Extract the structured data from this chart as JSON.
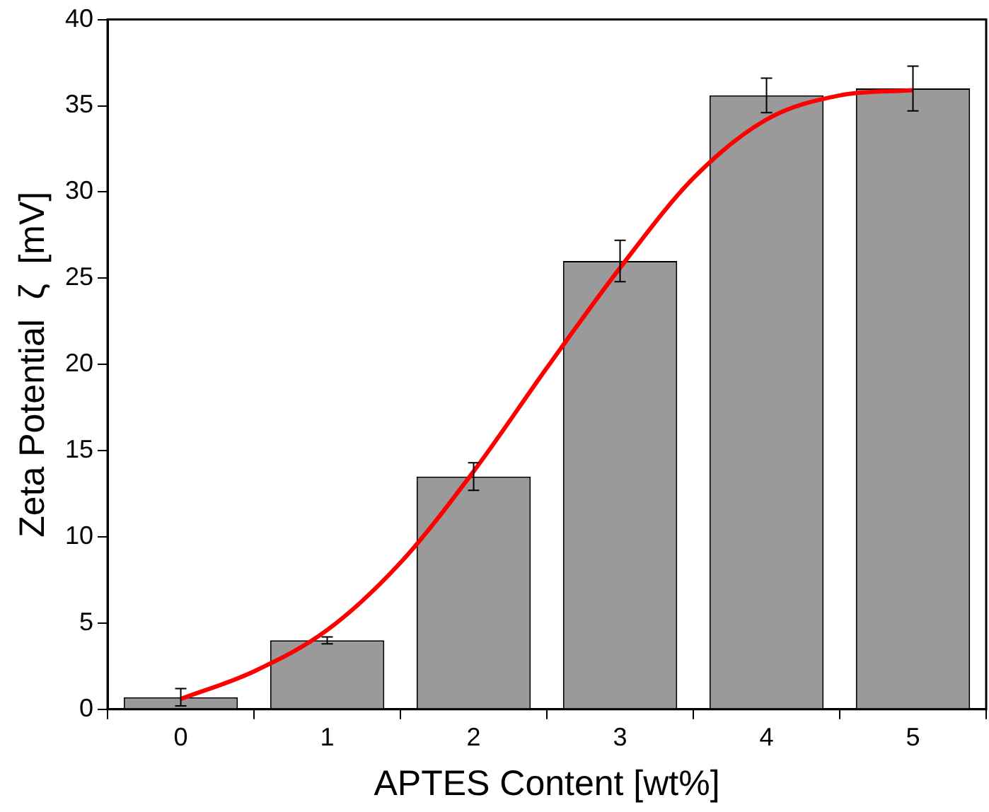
{
  "chart_data": {
    "type": "bar",
    "xlabel": "APTES Content [wt%]",
    "ylabel": "Zeta Potential  ζ  [mV]",
    "x": [
      0,
      1,
      2,
      3,
      4,
      5
    ],
    "xlim": [
      -0.5,
      5.5
    ],
    "xticks": [
      0,
      1,
      2,
      3,
      4,
      5
    ],
    "ylim": [
      0,
      40
    ],
    "yticks": [
      0,
      5,
      10,
      15,
      20,
      25,
      30,
      35,
      40
    ],
    "grid": false,
    "legend": false,
    "marker": "none",
    "series": [
      {
        "color": "#9a9a9a",
        "values": [
          0.7,
          4.0,
          13.5,
          26.0,
          35.6,
          36.0
        ],
        "errors": [
          0.5,
          0.2,
          0.8,
          1.2,
          1.0,
          1.3
        ]
      },
      {
        "type": "line",
        "color": "#ff0000",
        "line_style": "solid",
        "x": [
          0,
          0.5,
          1,
          1.5,
          2,
          2.5,
          3,
          3.5,
          4,
          4.5,
          5
        ],
        "values": [
          0.6,
          2.2,
          4.6,
          8.5,
          13.8,
          19.8,
          25.6,
          30.8,
          34.2,
          35.6,
          35.9
        ]
      }
    ]
  }
}
